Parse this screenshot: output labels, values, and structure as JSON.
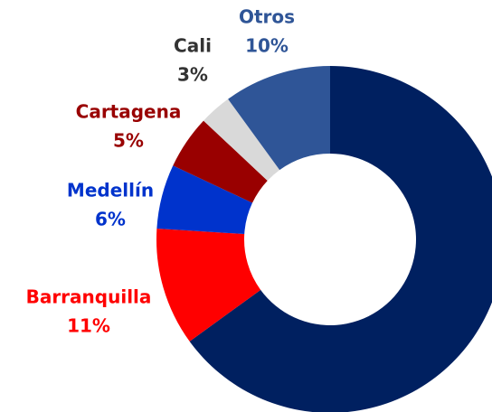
{
  "chart_data": {
    "type": "donut",
    "categories": [
      null,
      "Barranquilla",
      "Medellín",
      "Cartagena",
      "Cali",
      "Otros"
    ],
    "values": [
      65,
      11,
      6,
      5,
      3,
      10
    ],
    "value_labels": [
      null,
      "11%",
      "6%",
      "5%",
      "3%",
      "10%"
    ],
    "colors": [
      "#002060",
      "#ff0000",
      "#0033cc",
      "#990000",
      "#d9d9d9",
      "#2f5597"
    ],
    "label_colors": [
      null,
      "#ff0000",
      "#0033cc",
      "#990000",
      "#333333",
      "#2f5597"
    ]
  }
}
